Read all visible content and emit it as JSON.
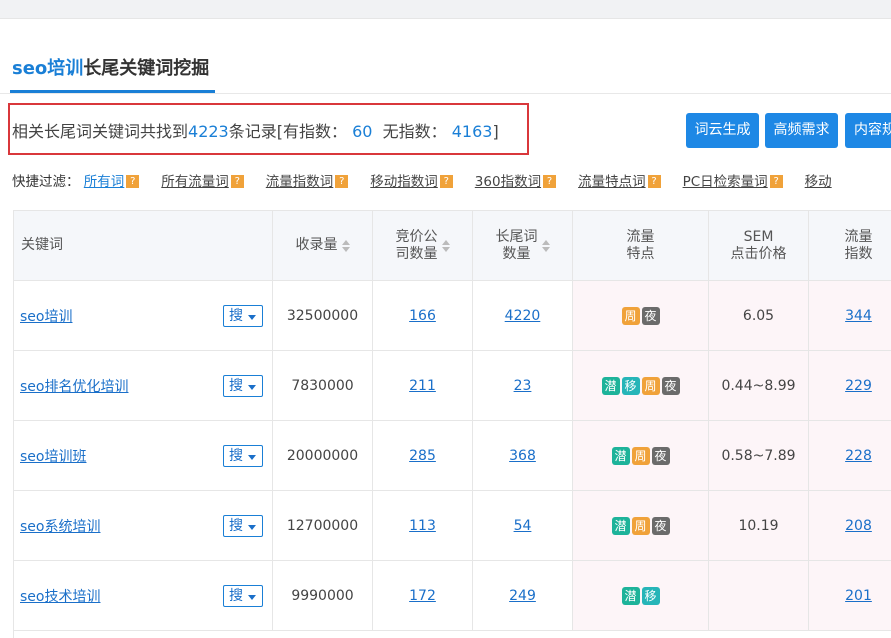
{
  "tab": {
    "keyword": "seo培训",
    "suffix": "长尾关键词挖掘"
  },
  "summary": {
    "prefix": "相关长尾词关键词共找到",
    "total": 4223,
    "middle": "条记录[有指数：",
    "indexed": 60,
    "no_index_label": "无指数：",
    "unindexed": 4163,
    "suffix": "]"
  },
  "buttons": [
    "词云生成",
    "高频需求",
    "内容规"
  ],
  "filter": {
    "label": "快捷过滤：",
    "options": [
      "所有词",
      "所有流量词",
      "流量指数词",
      "移动指数词",
      "360指数词",
      "流量特点词",
      "PC日检索量词",
      "移动"
    ]
  },
  "table": {
    "headers": [
      [
        "关键词"
      ],
      [
        "收录量"
      ],
      [
        "竞价公",
        "司数量"
      ],
      [
        "长尾词",
        "数量"
      ],
      [
        "流量",
        "特点"
      ],
      [
        "SEM",
        "点击价格"
      ],
      [
        "流量",
        "指数"
      ]
    ],
    "search_button": "搜",
    "rows": [
      {
        "keyword": "seo培训",
        "indexed": 32500000,
        "bid_companies": 166,
        "longtail": 4220,
        "tags": [
          {
            "label": "周",
            "color": "#f0a23a"
          },
          {
            "label": "夜",
            "color": "#6b6b6b"
          }
        ],
        "sem": "6.05",
        "traffic_index": 344
      },
      {
        "keyword": "seo排名优化培训",
        "indexed": 7830000,
        "bid_companies": 211,
        "longtail": 23,
        "tags": [
          {
            "label": "潜",
            "color": "#1db39a"
          },
          {
            "label": "移",
            "color": "#26b5b8"
          },
          {
            "label": "周",
            "color": "#f0a23a"
          },
          {
            "label": "夜",
            "color": "#6b6b6b"
          }
        ],
        "sem": "0.44~8.99",
        "traffic_index": 229
      },
      {
        "keyword": "seo培训班",
        "indexed": 20000000,
        "bid_companies": 285,
        "longtail": 368,
        "tags": [
          {
            "label": "潜",
            "color": "#1db39a"
          },
          {
            "label": "周",
            "color": "#f0a23a"
          },
          {
            "label": "夜",
            "color": "#6b6b6b"
          }
        ],
        "sem": "0.58~7.89",
        "traffic_index": 228
      },
      {
        "keyword": "seo系统培训",
        "indexed": 12700000,
        "bid_companies": 113,
        "longtail": 54,
        "tags": [
          {
            "label": "潜",
            "color": "#1db39a"
          },
          {
            "label": "周",
            "color": "#f0a23a"
          },
          {
            "label": "夜",
            "color": "#6b6b6b"
          }
        ],
        "sem": "10.19",
        "traffic_index": 208
      },
      {
        "keyword": "seo技术培训",
        "indexed": 9990000,
        "bid_companies": 172,
        "longtail": 249,
        "tags": [
          {
            "label": "潜",
            "color": "#1db39a"
          },
          {
            "label": "移",
            "color": "#26b5b8"
          }
        ],
        "traffic_index": 201
      }
    ]
  }
}
